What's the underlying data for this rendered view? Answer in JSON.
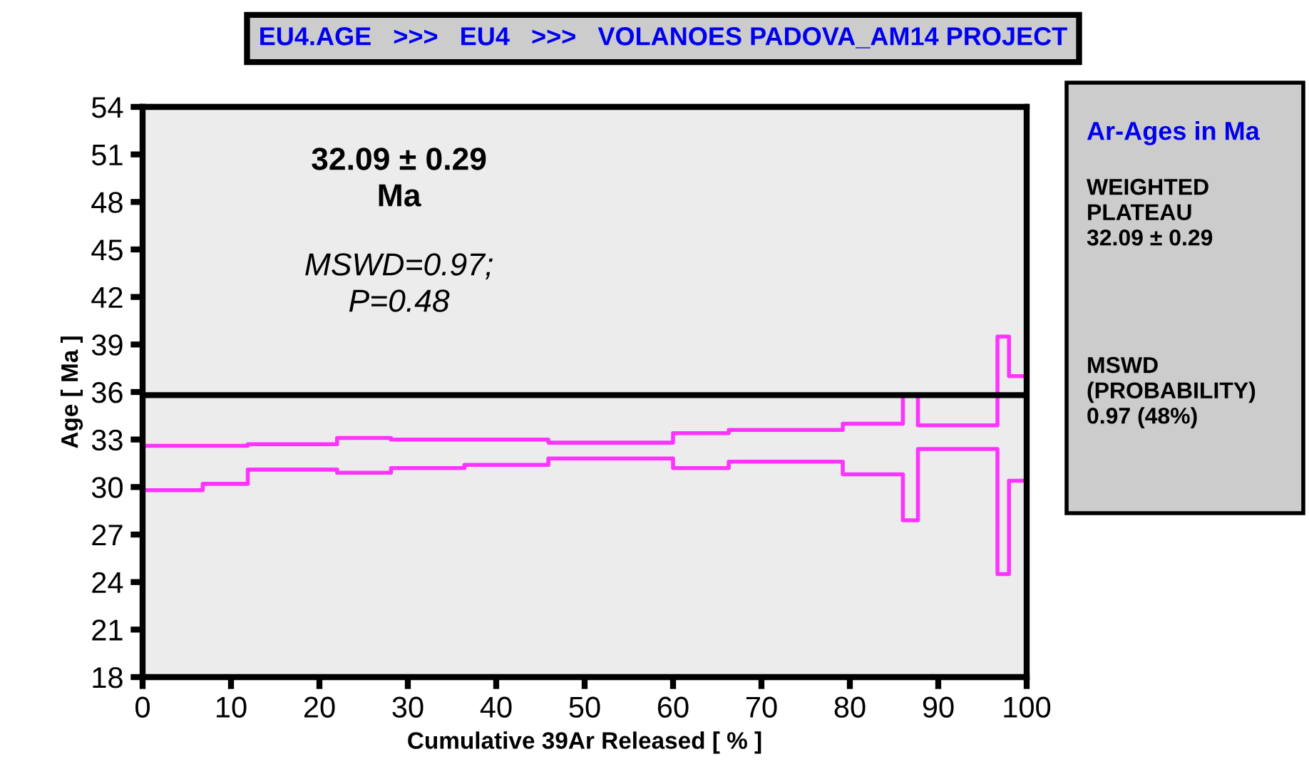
{
  "chart_data": {
    "type": "step",
    "title": "EU4.AGE   >>>   EU4   >>>   VOLANOES PADOVA_AM14 PROJECT",
    "xlabel": "Cumulative 39Ar Released [ % ]",
    "ylabel": "Age [ Ma ]",
    "x": [
      0,
      6.8,
      11.9,
      22.0,
      28.1,
      36.4,
      45.9,
      60.0,
      66.3,
      79.2,
      86.0,
      87.7,
      96.7,
      98.0,
      100
    ],
    "series": [
      {
        "color": "#ff33ff",
        "values": [
          32.6,
          32.6,
          32.7,
          33.1,
          33.0,
          33.0,
          32.8,
          33.4,
          33.6,
          34.0,
          35.8,
          33.9,
          39.5,
          37.0,
          37.0
        ]
      },
      {
        "color": "#ff33ff",
        "values": [
          29.8,
          30.2,
          31.1,
          30.9,
          31.2,
          31.4,
          31.8,
          31.2,
          31.6,
          30.8,
          27.9,
          32.4,
          24.5,
          30.4,
          30.4
        ]
      }
    ],
    "xlim": [
      0,
      100
    ],
    "xticks": [
      0,
      10,
      20,
      30,
      40,
      50,
      60,
      70,
      80,
      90,
      100
    ],
    "ylim": [
      18,
      54
    ],
    "yticks": [
      18,
      21,
      24,
      27,
      30,
      33,
      36,
      39,
      42,
      45,
      48,
      51,
      54
    ],
    "ref_lines": [
      {
        "axis": "y",
        "value": 35.8,
        "color": "#000000"
      }
    ],
    "annotations": [
      "32.09 ± 0.29\nMa",
      "MSWD=0.97;\nP=0.48",
      "Ar-Ages in Ma",
      "WEIGHTED\nPLATEAU\n32.09 ± 0.29",
      "MSWD\n(PROBABILITY)\n0.97 (48%)"
    ],
    "grid": false,
    "legend": false
  }
}
